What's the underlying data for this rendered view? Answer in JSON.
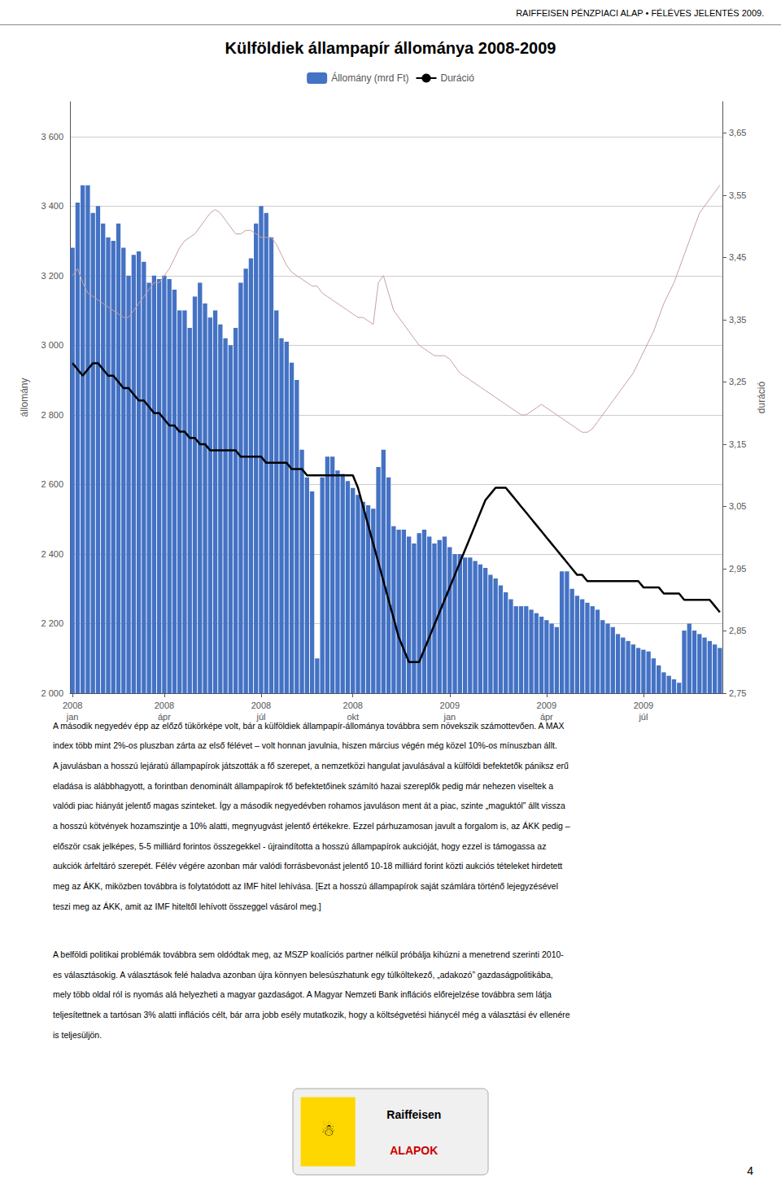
{
  "chart_data": {
    "type": "bar",
    "title": "Külföldiek állampapír állománya 2008-2009",
    "subtitle": "RAIFFEISEN PÉNZPIACI ALAP • FÉLÉVES JELENTÉS 2009.",
    "ylabel": "állomány",
    "y2label": "duráció",
    "grid": true,
    "legend": "top",
    "ylim": [
      2000,
      3700
    ],
    "yticks": [
      {
        "value": 2000,
        "label": "2 000"
      },
      {
        "value": 2200,
        "label": "2 200"
      },
      {
        "value": 2400,
        "label": "2 400"
      },
      {
        "value": 2600,
        "label": "2 600"
      },
      {
        "value": 2800,
        "label": "2 800"
      },
      {
        "value": 3000,
        "label": "3 000"
      },
      {
        "value": 3200,
        "label": "3 200"
      },
      {
        "value": 3400,
        "label": "3 400"
      },
      {
        "value": 3600,
        "label": "3 600"
      }
    ],
    "y2lim": [
      2.75,
      3.7
    ],
    "y2ticks": [
      {
        "value": 2.75,
        "label": "2,75"
      },
      {
        "value": 2.85,
        "label": "2,85"
      },
      {
        "value": 2.95,
        "label": "2,95"
      },
      {
        "value": 3.05,
        "label": "3,05"
      },
      {
        "value": 3.15,
        "label": "3,15"
      },
      {
        "value": 3.25,
        "label": "3,25"
      },
      {
        "value": 3.35,
        "label": "3,35"
      },
      {
        "value": 3.45,
        "label": "3,45"
      },
      {
        "value": 3.55,
        "label": "3,55"
      },
      {
        "value": 3.65,
        "label": "3,65"
      }
    ],
    "categories": [
      "2008\njan",
      null,
      null,
      null,
      null,
      null,
      null,
      null,
      null,
      null,
      null,
      null,
      null,
      null,
      null,
      null,
      null,
      null,
      "2008\nápr",
      null,
      null,
      null,
      null,
      null,
      null,
      null,
      null,
      null,
      null,
      null,
      null,
      null,
      null,
      null,
      null,
      null,
      null,
      "2008\njúl",
      null,
      null,
      null,
      null,
      null,
      null,
      null,
      null,
      null,
      null,
      null,
      null,
      null,
      null,
      null,
      null,
      null,
      "2008\nokt",
      null,
      null,
      null,
      null,
      null,
      null,
      null,
      null,
      null,
      null,
      null,
      null,
      null,
      null,
      null,
      null,
      null,
      null,
      "2009\njan",
      null,
      null,
      null,
      null,
      null,
      null,
      null,
      null,
      null,
      null,
      null,
      null,
      null,
      null,
      null,
      null,
      null,
      null,
      "2009\nápr",
      null,
      null,
      null,
      null,
      null,
      null,
      null,
      null,
      null,
      null,
      null,
      null,
      null,
      null,
      null,
      null,
      null,
      null,
      "2009\njúl",
      null,
      null,
      null,
      null,
      null,
      null,
      null,
      null,
      null,
      null,
      null,
      null,
      null,
      null,
      null
    ],
    "series": [
      {
        "name": "Állomány (mrd Ft)",
        "type": "bar",
        "color": "#4472C4",
        "values": [
          3280,
          3410,
          3460,
          3460,
          3380,
          3400,
          3350,
          3310,
          3300,
          3350,
          3280,
          3200,
          3260,
          3270,
          3240,
          3180,
          3200,
          3190,
          3200,
          3190,
          3160,
          3100,
          3100,
          3050,
          3140,
          3180,
          3120,
          3080,
          3100,
          3060,
          3020,
          3000,
          3050,
          3180,
          3220,
          3250,
          3350,
          3400,
          3380,
          3310,
          3100,
          3020,
          3010,
          2950,
          2900,
          2700,
          2620,
          2580,
          2100,
          2620,
          2680,
          2680,
          2640,
          2630,
          2610,
          2590,
          2570,
          2550,
          2540,
          2530,
          2650,
          2700,
          2620,
          2480,
          2470,
          2470,
          2450,
          2430,
          2460,
          2470,
          2450,
          2430,
          2440,
          2450,
          2420,
          2400,
          2400,
          2390,
          2390,
          2380,
          2370,
          2360,
          2340,
          2330,
          2310,
          2290,
          2270,
          2250,
          2250,
          2250,
          2240,
          2230,
          2220,
          2210,
          2200,
          2190,
          2350,
          2350,
          2300,
          2280,
          2270,
          2260,
          2250,
          2240,
          2210,
          2200,
          2190,
          2170,
          2160,
          2150,
          2140,
          2130,
          2125,
          2120,
          2100,
          2080,
          2060,
          2050,
          2040,
          2030,
          2180,
          2200,
          2180,
          2170,
          2160,
          2150,
          2140,
          2130
        ]
      },
      {
        "name": "Duráció",
        "type": "line",
        "axis": "y2",
        "color": "#000000",
        "values": [
          3.28,
          3.27,
          3.26,
          3.27,
          3.28,
          3.28,
          3.27,
          3.26,
          3.26,
          3.25,
          3.24,
          3.24,
          3.23,
          3.22,
          3.22,
          3.21,
          3.2,
          3.2,
          3.19,
          3.18,
          3.18,
          3.17,
          3.17,
          3.16,
          3.16,
          3.15,
          3.15,
          3.14,
          3.14,
          3.14,
          3.14,
          3.14,
          3.14,
          3.13,
          3.13,
          3.13,
          3.13,
          3.13,
          3.12,
          3.12,
          3.12,
          3.12,
          3.12,
          3.11,
          3.11,
          3.11,
          3.1,
          3.1,
          3.1,
          3.1,
          3.1,
          3.1,
          3.1,
          3.1,
          3.1,
          3.1,
          3.08,
          3.05,
          3.02,
          2.99,
          2.96,
          2.93,
          2.9,
          2.87,
          2.84,
          2.82,
          2.8,
          2.8,
          2.8,
          2.82,
          2.84,
          2.86,
          2.88,
          2.9,
          2.92,
          2.94,
          2.96,
          2.98,
          3.0,
          3.02,
          3.04,
          3.06,
          3.07,
          3.08,
          3.08,
          3.08,
          3.07,
          3.06,
          3.05,
          3.04,
          3.03,
          3.02,
          3.01,
          3.0,
          2.99,
          2.98,
          2.97,
          2.96,
          2.95,
          2.94,
          2.94,
          2.93,
          2.93,
          2.93,
          2.93,
          2.93,
          2.93,
          2.93,
          2.93,
          2.93,
          2.93,
          2.93,
          2.92,
          2.92,
          2.92,
          2.92,
          2.91,
          2.91,
          2.91,
          2.91,
          2.9,
          2.9,
          2.9,
          2.9,
          2.9,
          2.9,
          2.89,
          2.88
        ]
      },
      {
        "type": "line",
        "color": "#C9A0A0",
        "values": [
          3200,
          3220,
          3180,
          3150,
          3140,
          3130,
          3120,
          3110,
          3100,
          3090,
          3080,
          3080,
          3100,
          3120,
          3140,
          3160,
          3180,
          3180,
          3200,
          3220,
          3250,
          3280,
          3300,
          3310,
          3320,
          3340,
          3360,
          3380,
          3390,
          3380,
          3360,
          3340,
          3320,
          3320,
          3330,
          3330,
          3320,
          3310,
          3310,
          3310,
          3290,
          3260,
          3230,
          3210,
          3200,
          3190,
          3180,
          3170,
          3170,
          3150,
          3140,
          3130,
          3120,
          3110,
          3100,
          3090,
          3080,
          3080,
          3070,
          3060,
          3180,
          3200,
          3150,
          3100,
          3080,
          3060,
          3040,
          3020,
          3000,
          2990,
          2980,
          2970,
          2970,
          2970,
          2960,
          2940,
          2920,
          2910,
          2900,
          2890,
          2880,
          2870,
          2860,
          2850,
          2840,
          2830,
          2820,
          2810,
          2800,
          2800,
          2810,
          2820,
          2830,
          2820,
          2810,
          2800,
          2790,
          2780,
          2770,
          2760,
          2750,
          2750,
          2760,
          2780,
          2800,
          2820,
          2840,
          2860,
          2880,
          2900,
          2920,
          2950,
          2980,
          3010,
          3040,
          3080,
          3120,
          3150,
          3180,
          3220,
          3260,
          3300,
          3340,
          3380,
          3400,
          3420,
          3440,
          3460
        ]
      }
    ],
    "annotations": [
      [
        "A második negyedév épp az előző tükörképe volt, bár a külföldiek állampapír-állománya továbbra sem növekszik számottevően. A MAX",
        "index több mint 2%-os pluszban zárta az első félévet – volt honnan javulnia, hiszen március végén még közel 10%-os mínuszban állt.",
        "A javulásban a hosszú lejáratú állampapírok játszották a fő szerepet, a nemzetközi hangulat javulásával a külföldi befektetők pániksz erű",
        "eladása is alábbhagyott, a forintban denominált állampapírok fő befektetőinek számító hazai szereplők pedig már nehezen viseltek a",
        "valódi piac hiányát jelentő magas szinteket. Így a második negyedévben rohamos javuláson ment át a piac, szinte „maguktól” állt vissza",
        "a hosszú kötvények hozamszintje a 10% alatti, megnyugvást jelentő értékekre. Ezzel párhuzamosan javult a forgalom is, az ÁKK pedig –",
        "először csak jelképes, 5-5 milliárd forintos összegekkel - újraindította a hosszú állampapírok aukcióját, hogy ezzel is támogassa az",
        "aukciók árfeltáró szerepét. Félév végére azonban már valódi forrásbevonást jelentő 10-18 milliárd forint közti aukciós tételeket hirdetett",
        "meg az ÁKK, miközben továbbra is folytatódott az IMF hitel lehívása. [Ezt a hosszú állampapírok saját számlára történő lejegyzésével",
        "teszi meg az ÁKK, amit az IMF hiteltől lehívott összeggel vásárol meg.]"
      ],
      [
        "A belföldi politikai problémák továbbra sem oldódtak meg, az MSZP koalíciós partner nélkül próbálja kihúzni a menetrend szerinti 2010-",
        "es választásokig. A választások felé haladva azonban újra könnyen belesúszhatunk egy túlköltekező, „adakozó” gazdaságpolitikába,",
        "mely több oldal ról is nyomás alá helyezheti a magyar gazdaságot. A Magyar Nemzeti Bank inflációs előrejelzése továbbra sem látja",
        "teljesítettnek a tartósan 3% alatti inflációs célt, bár arra jobb esély mutatkozik, hogy a költségvetési hiánycél még a választási év ellenére",
        "is teljesüljön."
      ],
      [
        "☃",
        "Raiffeisen",
        "ALAPOK"
      ],
      [
        "4"
      ]
    ]
  }
}
